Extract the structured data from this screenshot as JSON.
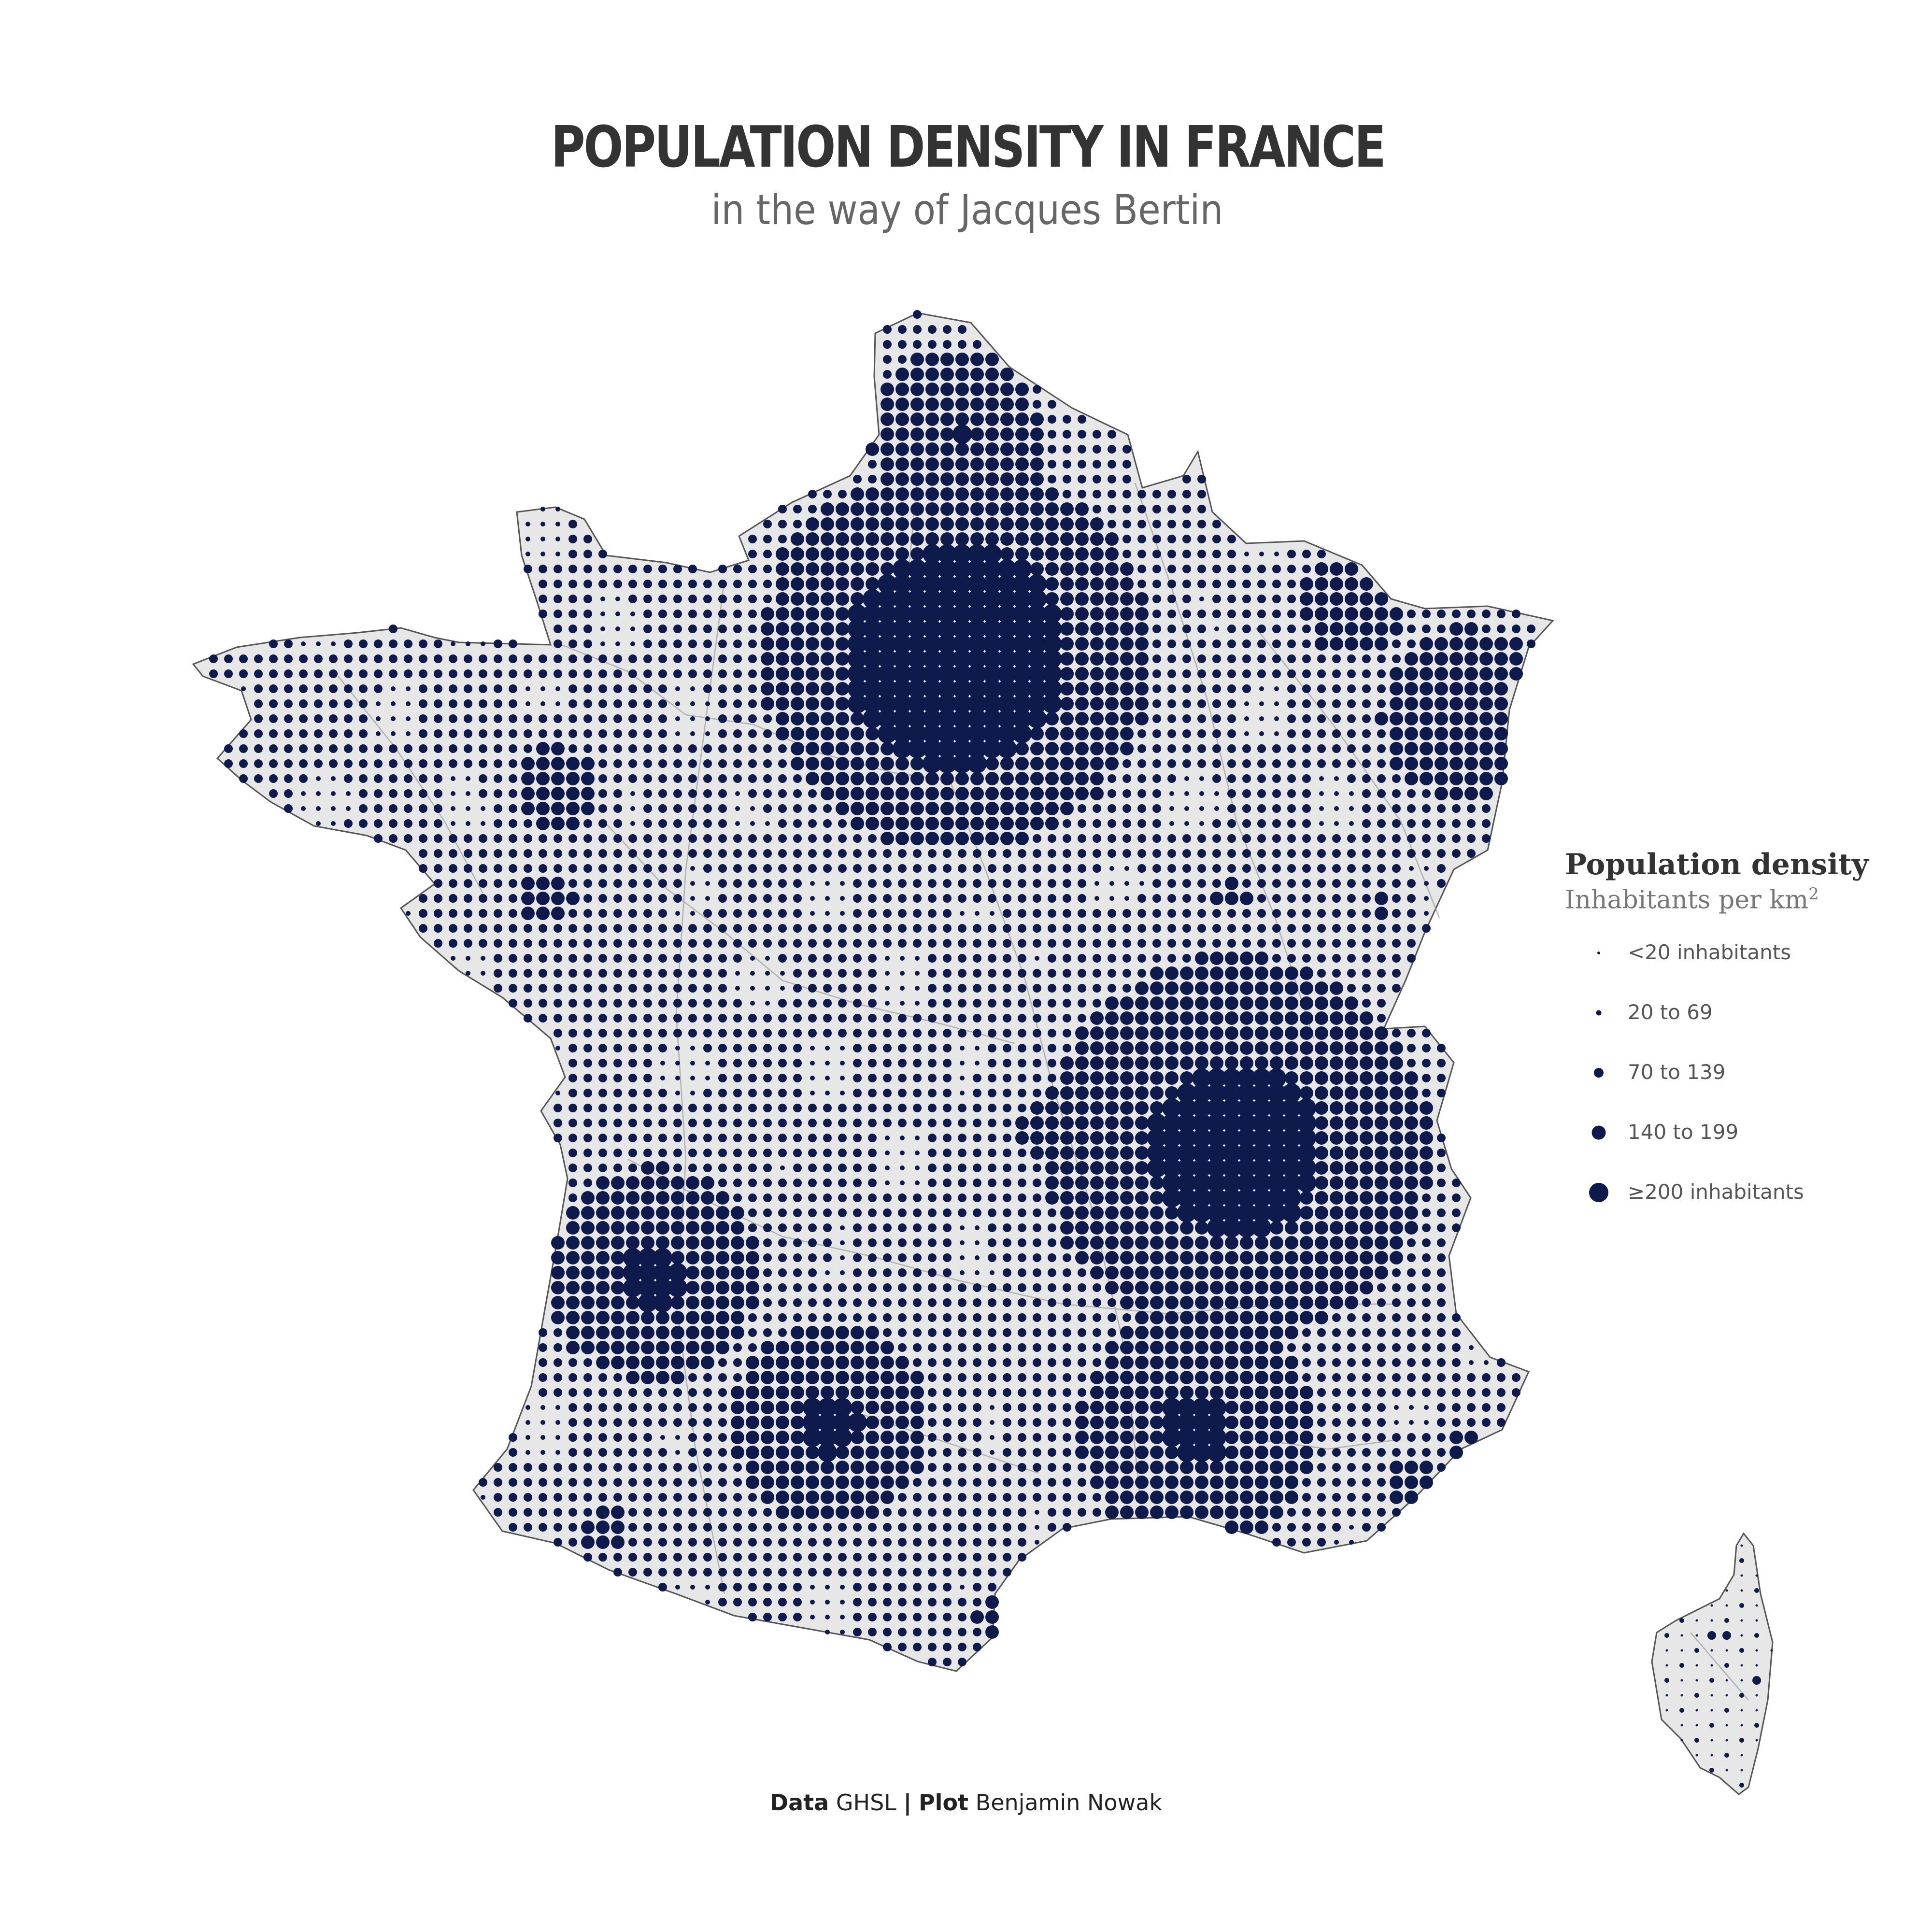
{
  "title": "POPULATION DENSITY IN FRANCE",
  "subtitle": "in the way of Jacques Bertin",
  "legend": {
    "title": "Population density",
    "subtitle": "Inhabitants per km",
    "subtitle_sup": "2",
    "items": [
      {
        "label": "<20 inhabitants"
      },
      {
        "label": "20 to 69"
      },
      {
        "label": "70 to 139"
      },
      {
        "label": "140 to 199"
      },
      {
        "label": "≥200 inhabitants"
      }
    ]
  },
  "caption": {
    "data_label": "Data",
    "data_value": "GHSL",
    "separator": "|",
    "plot_label": "Plot",
    "plot_value": "Benjamin Nowak"
  },
  "colors": {
    "dot": "#0d1a4b",
    "land": "#e6e7e6",
    "border": "#9a9a9a",
    "coast": "#555555"
  }
}
